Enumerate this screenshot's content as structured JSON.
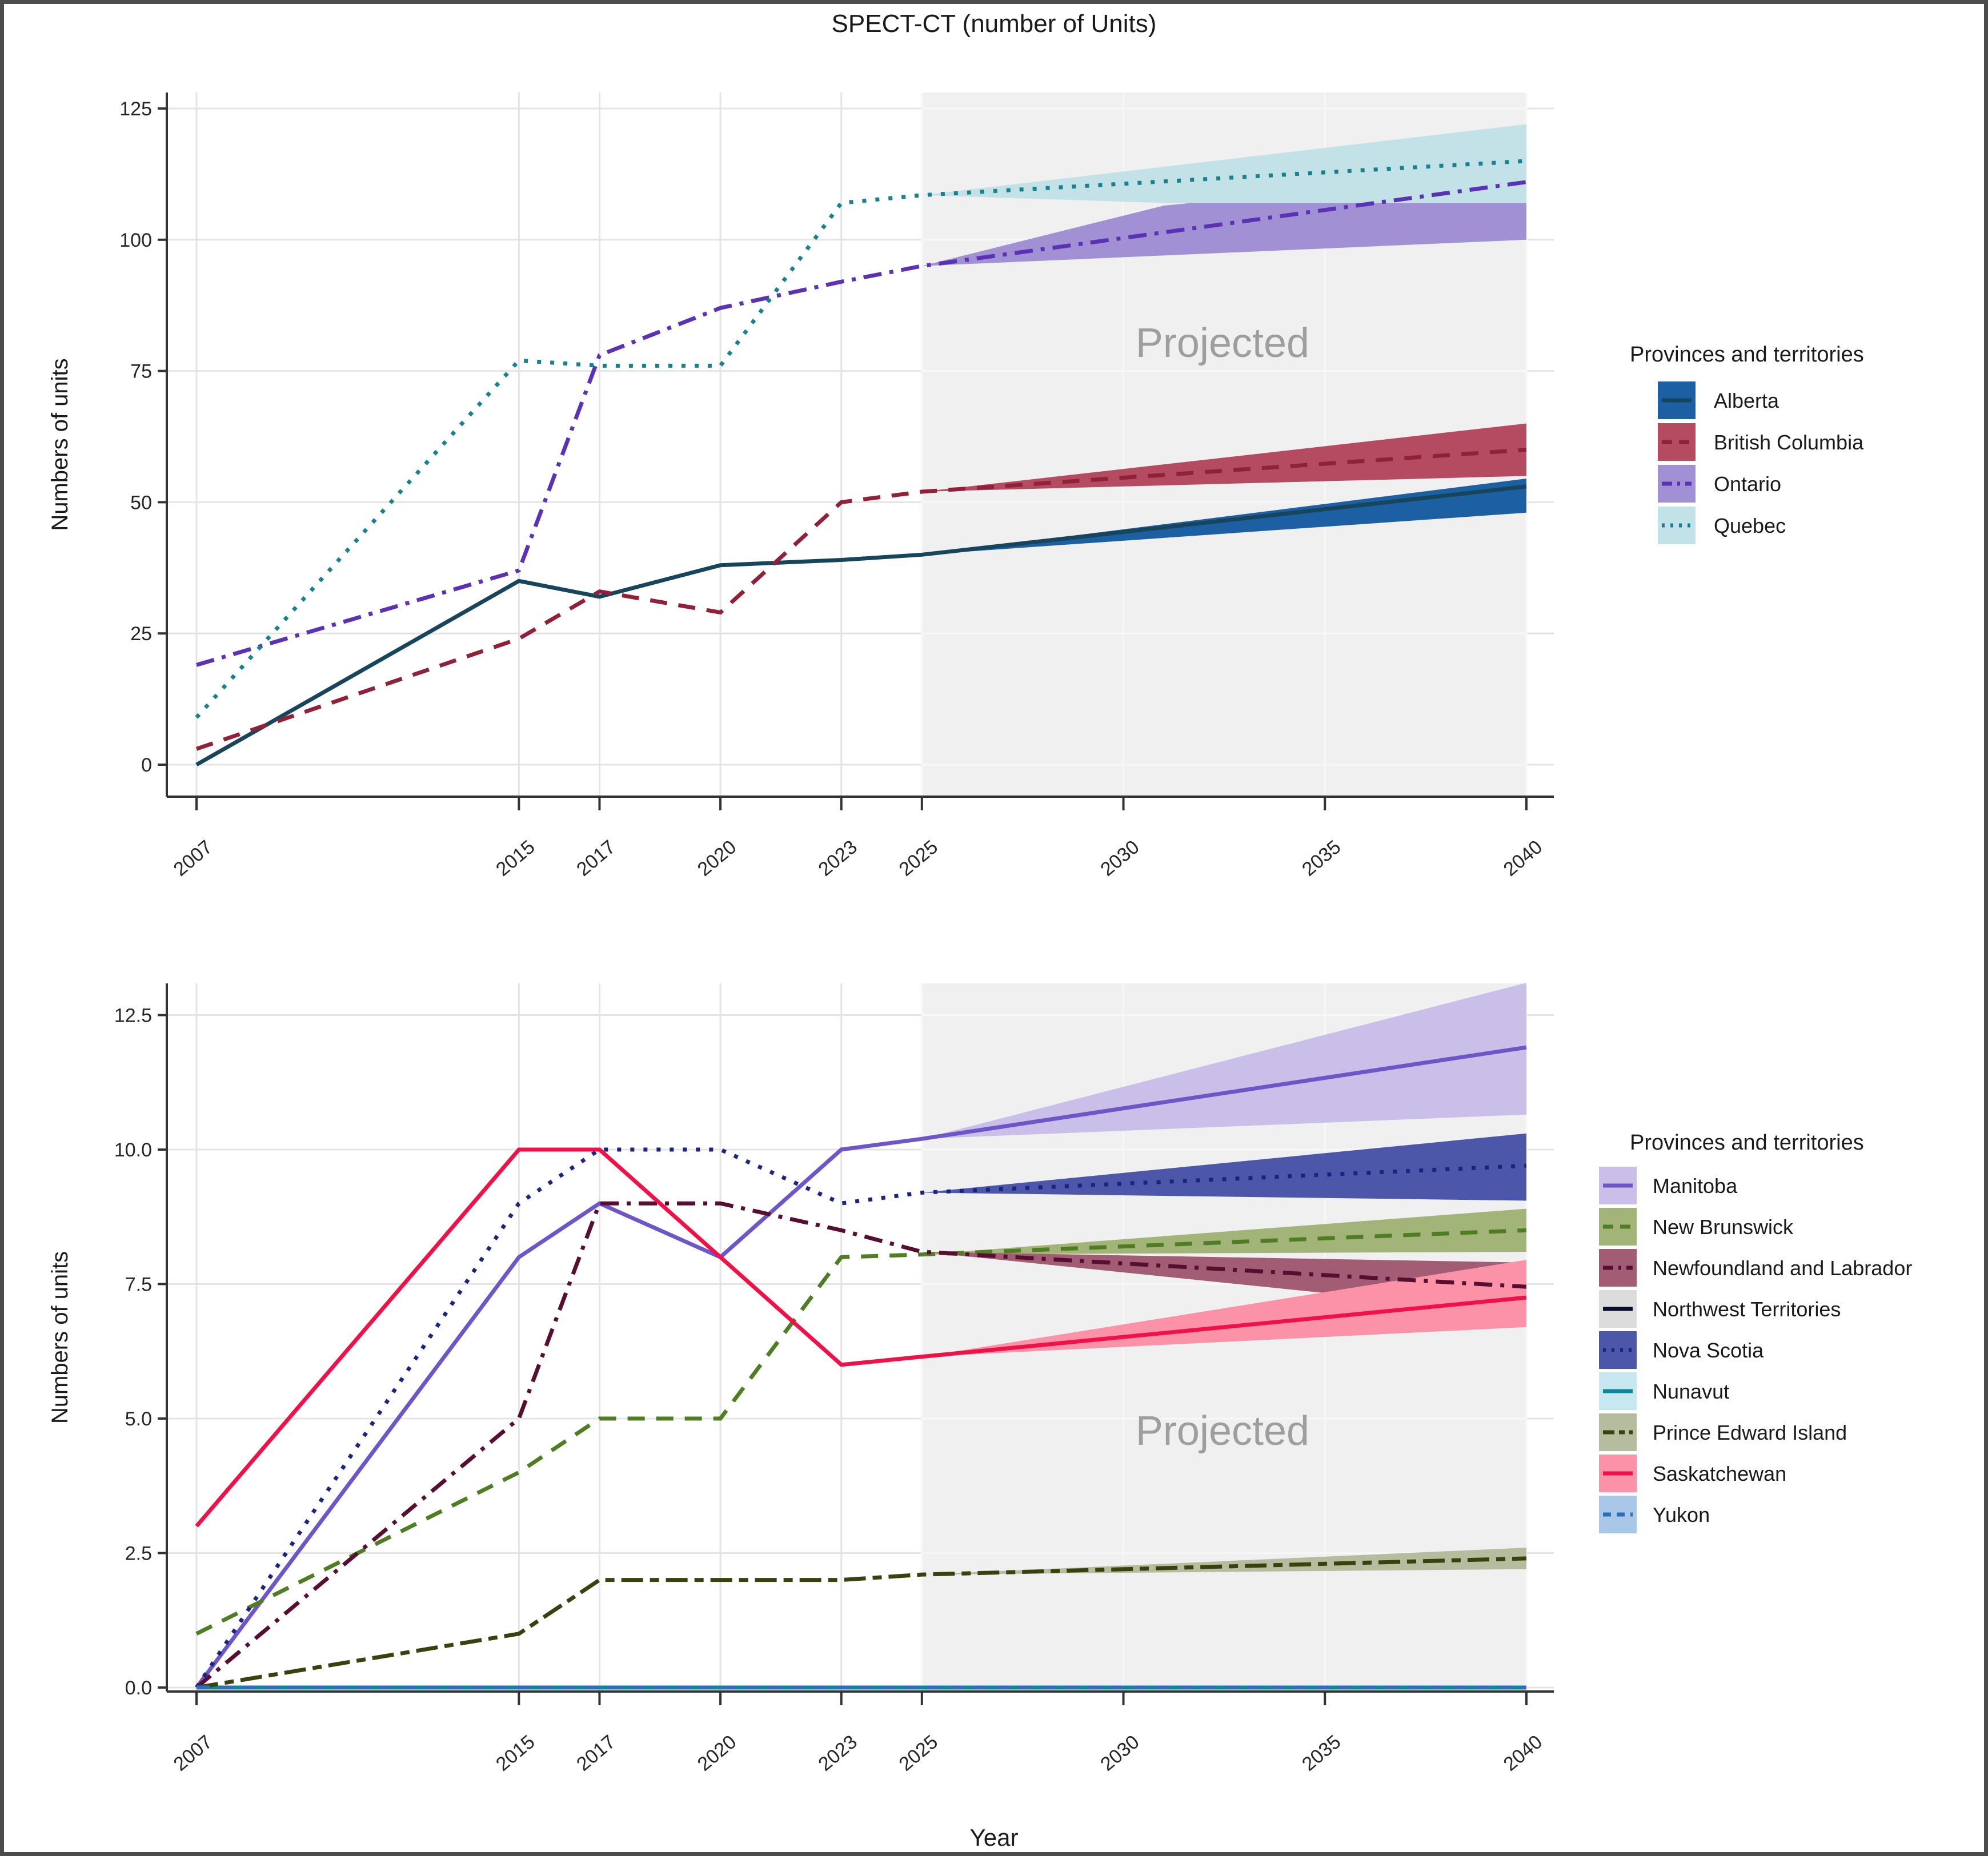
{
  "title": "SPECT-CT (number of Units)",
  "x_axis_label": "Year",
  "projected_label": "Projected",
  "colors": {
    "axis_line": "#333333",
    "grid_line": "#e4e4e4",
    "grid_line_on_shade": "#f7f7f7",
    "projected_region_fill": "#f0f0f0",
    "projected_text": "#9e9e9e",
    "tick_text": "#262626",
    "title_text": "#1a1a1a"
  },
  "chart_data": [
    {
      "type": "line",
      "panel": "top",
      "ylabel": "Numbers of units",
      "legend_title": "Provinces and territories",
      "x_ticks": [
        2007,
        2015,
        2017,
        2020,
        2023,
        2025,
        2030,
        2035,
        2040
      ],
      "y_ticks": [
        0,
        25,
        50,
        75,
        100,
        125
      ],
      "y_tick_labels": [
        "0",
        "25",
        "50",
        "75",
        "100",
        "125"
      ],
      "ylim": [
        0,
        125
      ],
      "projected_region": [
        2025,
        2040
      ],
      "series": [
        {
          "name": "Alberta",
          "line_color": "#16455c",
          "band_color": "#1d5fa3",
          "dash": "solid",
          "x": [
            2007,
            2015,
            2017,
            2020,
            2023,
            2025,
            2040
          ],
          "y": [
            0,
            35,
            32,
            38,
            39,
            40,
            53
          ],
          "band": {
            "x": [
              2025,
              2040
            ],
            "upper": [
              40,
              54.5
            ],
            "lower": [
              40,
              48
            ]
          }
        },
        {
          "name": "British Columbia",
          "line_color": "#8f2138",
          "band_color": "#b44b61",
          "dash": "dashed",
          "x": [
            2007,
            2015,
            2017,
            2020,
            2023,
            2025,
            2040
          ],
          "y": [
            3,
            24,
            33,
            29,
            50,
            52,
            60
          ],
          "band": {
            "x": [
              2025,
              2040
            ],
            "upper": [
              52,
              65
            ],
            "lower": [
              52,
              55
            ]
          }
        },
        {
          "name": "Ontario",
          "line_color": "#5b32b4",
          "band_color": "#a190d4",
          "dash": "dotdash",
          "x": [
            2007,
            2015,
            2017,
            2020,
            2023,
            2025,
            2040
          ],
          "y": [
            19,
            37,
            78,
            87,
            92,
            95,
            111
          ],
          "band": {
            "x": [
              2025,
              2031,
              2040
            ],
            "upper": [
              95,
              106.5,
              113
            ],
            "lower": [
              95,
              97,
              100
            ]
          }
        },
        {
          "name": "Quebec",
          "line_color": "#18818e",
          "band_color": "#c2e2e8",
          "dash": "dotted",
          "x": [
            2007,
            2015,
            2017,
            2020,
            2023,
            2025,
            2040
          ],
          "y": [
            9,
            77,
            76,
            76,
            107,
            108.5,
            115
          ],
          "band": {
            "x": [
              2025,
              2031,
              2040
            ],
            "upper": [
              108.5,
              113.9,
              122
            ],
            "lower": [
              108.5,
              107,
              107
            ]
          }
        }
      ]
    },
    {
      "type": "line",
      "panel": "bottom",
      "ylabel": "Numbers of units",
      "legend_title": "Provinces and territories",
      "x_ticks": [
        2007,
        2015,
        2017,
        2020,
        2023,
        2025,
        2030,
        2035,
        2040
      ],
      "y_ticks": [
        0,
        2.5,
        5,
        7.5,
        10,
        12.5
      ],
      "y_tick_labels": [
        "0.0",
        "2.5",
        "5.0",
        "7.5",
        "10.0",
        "12.5"
      ],
      "ylim": [
        0,
        12.5
      ],
      "projected_region": [
        2025,
        2040
      ],
      "series": [
        {
          "name": "Manitoba",
          "line_color": "#6e55c8",
          "band_color": "#c9bfe9",
          "dash": "solid",
          "x": [
            2007,
            2015,
            2017,
            2020,
            2023,
            2025,
            2040
          ],
          "y": [
            0,
            8,
            9,
            8,
            10,
            10.2,
            11.9
          ],
          "band": {
            "x": [
              2025,
              2040
            ],
            "upper": [
              10.2,
              13.1
            ],
            "lower": [
              10.2,
              10.65
            ]
          }
        },
        {
          "name": "New Brunswick",
          "line_color": "#4f7d23",
          "band_color": "#a3b478",
          "dash": "dashed",
          "x": [
            2007,
            2015,
            2017,
            2020,
            2023,
            2025,
            2040
          ],
          "y": [
            1,
            4,
            5,
            5,
            8,
            8.05,
            8.5
          ],
          "band": {
            "x": [
              2025,
              2040
            ],
            "upper": [
              8.05,
              8.9
            ],
            "lower": [
              8.05,
              8.1
            ]
          }
        },
        {
          "name": "Newfoundland and Labrador",
          "line_color": "#570f31",
          "band_color": "#a25c74",
          "dash": "dotdash",
          "x": [
            2007,
            2015,
            2017,
            2020,
            2023,
            2025,
            2040
          ],
          "y": [
            0,
            5,
            9,
            9,
            8.5,
            8.1,
            7.45
          ],
          "band": {
            "x": [
              2025,
              2040
            ],
            "upper": [
              8.1,
              7.9
            ],
            "lower": [
              8.1,
              6.95
            ]
          }
        },
        {
          "name": "Northwest Territories",
          "line_color": "#0a0f2d",
          "band_color": "#dcdcdc",
          "dash": "solid",
          "x": [
            2007,
            2040
          ],
          "y": [
            0,
            0
          ],
          "band": null
        },
        {
          "name": "Nova Scotia",
          "line_color": "#1b2580",
          "band_color": "#4c57a9",
          "dash": "dotted",
          "x": [
            2007,
            2015,
            2017,
            2020,
            2023,
            2025,
            2040
          ],
          "y": [
            0,
            9,
            10,
            10,
            9,
            9.2,
            9.7
          ],
          "band": {
            "x": [
              2025,
              2040
            ],
            "upper": [
              9.2,
              10.3
            ],
            "lower": [
              9.2,
              9.05
            ]
          }
        },
        {
          "name": "Nunavut",
          "line_color": "#0d8799",
          "band_color": "#c7e8f1",
          "dash": "solid",
          "x": [
            2007,
            2040
          ],
          "y": [
            0,
            0
          ],
          "band": null
        },
        {
          "name": "Prince Edward Island",
          "line_color": "#39420f",
          "band_color": "#b6bc9e",
          "dash": "twodash",
          "x": [
            2007,
            2015,
            2017,
            2020,
            2023,
            2025,
            2040
          ],
          "y": [
            0,
            1,
            2,
            2,
            2,
            2.1,
            2.4
          ],
          "band": {
            "x": [
              2025,
              2040
            ],
            "upper": [
              2.1,
              2.6
            ],
            "lower": [
              2.1,
              2.2
            ]
          }
        },
        {
          "name": "Saskatchewan",
          "line_color": "#f01148",
          "band_color": "#fb92a8",
          "dash": "solid",
          "x": [
            2007,
            2015,
            2017,
            2020,
            2023,
            2025,
            2040
          ],
          "y": [
            3,
            10,
            10,
            8,
            6,
            6.15,
            7.25
          ],
          "band": {
            "x": [
              2025,
              2040
            ],
            "upper": [
              6.15,
              7.95
            ],
            "lower": [
              6.15,
              6.7
            ]
          }
        },
        {
          "name": "Yukon",
          "line_color": "#2f6fb9",
          "band_color": "#a9c7e9",
          "dash": "yukondash",
          "x": [
            2007,
            2040
          ],
          "y": [
            0,
            0
          ],
          "band": null
        }
      ]
    }
  ]
}
